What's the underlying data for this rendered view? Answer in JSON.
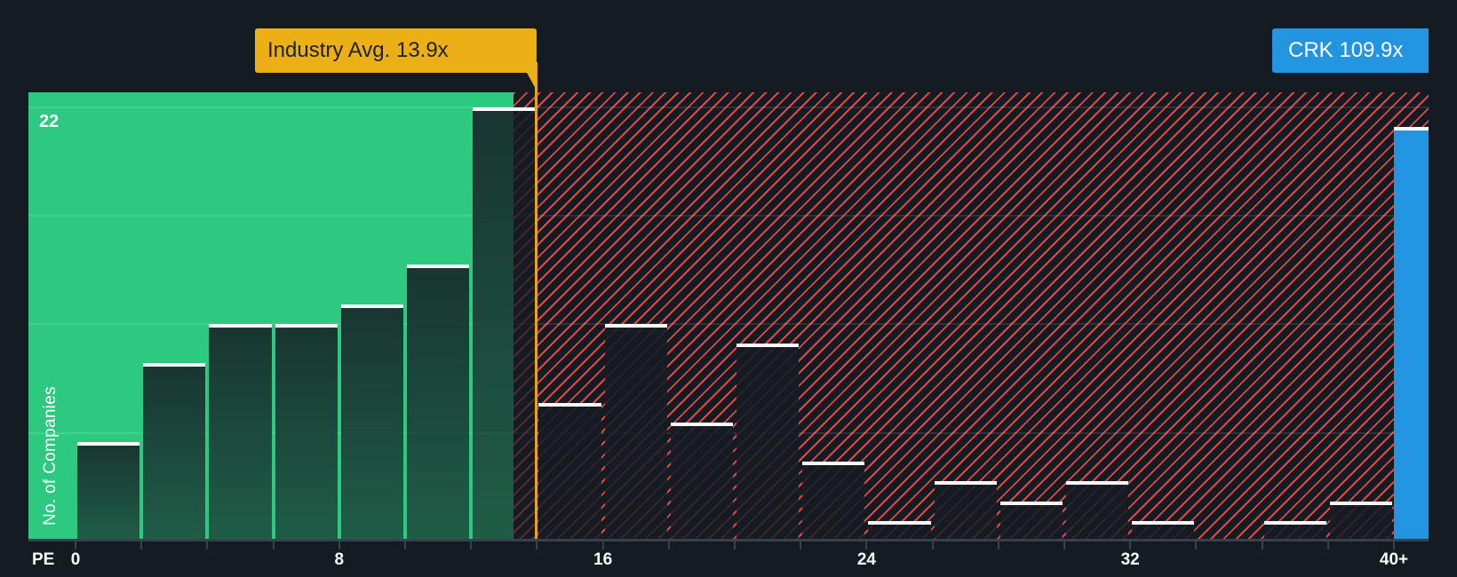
{
  "chart_data": {
    "type": "bar",
    "title": "",
    "xlabel": "PE",
    "ylabel": "No. of Companies",
    "x_tick_labels": [
      "0",
      "8",
      "16",
      "24",
      "32",
      "40+"
    ],
    "y_tick_labels": [
      "22"
    ],
    "ylim": [
      0,
      22
    ],
    "grid": true,
    "bin_width": 2,
    "categories": [
      "0-2",
      "2-4",
      "4-6",
      "6-8",
      "8-10",
      "10-12",
      "12-14",
      "14-16",
      "16-18",
      "18-20",
      "20-22",
      "22-24",
      "24-26",
      "26-28",
      "28-30",
      "30-32",
      "32-34",
      "34-36",
      "36-38",
      "38-40",
      "40+"
    ],
    "values": [
      5,
      9,
      11,
      11,
      12,
      14,
      22,
      7,
      11,
      6,
      10,
      4,
      1,
      3,
      2,
      3,
      1,
      0,
      1,
      2,
      21
    ],
    "annotations": [
      {
        "label": "Industry Avg. 13.9x",
        "x": 13.9,
        "color": "#ecb016"
      },
      {
        "label": "CRK 109.9x",
        "x": "40+",
        "color": "#2394e0"
      }
    ],
    "zones": [
      {
        "name": "below-average",
        "from": 0,
        "to": 13.9,
        "color": "#2ec981"
      },
      {
        "name": "above-average",
        "from": 13.9,
        "to": "40+",
        "color": "#e04848",
        "pattern": "hatched"
      }
    ]
  },
  "labels": {
    "industry_avg": "Industry Avg. 13.9x",
    "company": "CRK 109.9x",
    "y_axis": "No. of Companies",
    "y_max": "22",
    "x_axis": "PE",
    "ticks": [
      "0",
      "8",
      "16",
      "24",
      "32",
      "40+"
    ]
  },
  "colors": {
    "background": "#151b23",
    "green_zone": "#2ec981",
    "hatch": "#e04848",
    "avg_line": "#ecb016",
    "company_bar": "#2394e0"
  }
}
